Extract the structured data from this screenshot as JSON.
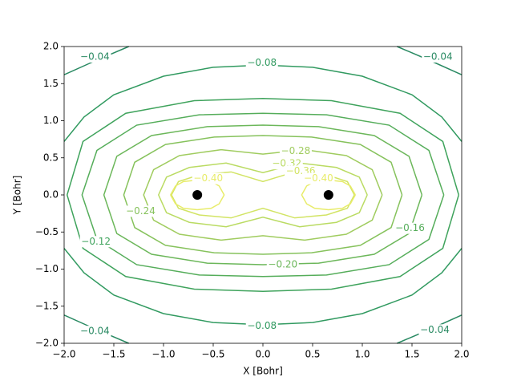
{
  "chart_data": {
    "type": "contour",
    "x_label": "X [Bohr]",
    "y_label": "Y [Bohr]",
    "xlim": [
      -2,
      2
    ],
    "ylim": [
      -2,
      2
    ],
    "xticks": [
      {
        "value": -2,
        "label": "−2.0"
      },
      {
        "value": -1.5,
        "label": "−1.5"
      },
      {
        "value": -1,
        "label": "−1.0"
      },
      {
        "value": -0.5,
        "label": "−0.5"
      },
      {
        "value": 0,
        "label": "0.0"
      },
      {
        "value": 0.5,
        "label": "0.5"
      },
      {
        "value": 1,
        "label": "1.0"
      },
      {
        "value": 1.5,
        "label": "1.5"
      },
      {
        "value": 2,
        "label": "2.0"
      }
    ],
    "yticks": [
      {
        "value": -2,
        "label": "−2.0"
      },
      {
        "value": -1.5,
        "label": "−1.5"
      },
      {
        "value": -1,
        "label": "−1.0"
      },
      {
        "value": -0.5,
        "label": "−0.5"
      },
      {
        "value": 0,
        "label": "0.0"
      },
      {
        "value": 0.5,
        "label": "0.5"
      },
      {
        "value": 1,
        "label": "1.0"
      },
      {
        "value": 1.5,
        "label": "1.5"
      },
      {
        "value": 2,
        "label": "2.0"
      }
    ],
    "series": [
      {
        "name": "−0.04",
        "color": "#2a8a63",
        "x": [
          -2,
          -1.7,
          -1.35,
          null,
          1.35,
          1.7,
          2,
          null,
          -2,
          -1.7,
          -1.35,
          null,
          1.35,
          1.7,
          2
        ],
        "y": [
          1.62,
          1.8,
          2,
          null,
          2,
          1.8,
          1.62,
          null,
          -1.62,
          -1.8,
          -2,
          null,
          -2,
          -1.8,
          -1.62
        ],
        "labels": [
          {
            "x": -1.69,
            "y": 1.86
          },
          {
            "x": 1.76,
            "y": 1.86
          },
          {
            "x": -1.69,
            "y": -1.84
          },
          {
            "x": 1.73,
            "y": -1.82
          }
        ]
      },
      {
        "name": "−0.08",
        "color": "#319a60",
        "x": [
          -2,
          -1.8,
          -1.5,
          -1,
          -0.5,
          0,
          0.5,
          1,
          1.5,
          1.8,
          2,
          null,
          -2,
          -1.8,
          -1.5,
          -1,
          -0.5,
          0,
          0.5,
          1,
          1.5,
          1.8,
          2
        ],
        "y": [
          0.72,
          1.05,
          1.35,
          1.6,
          1.72,
          1.75,
          1.72,
          1.6,
          1.35,
          1.05,
          0.72,
          null,
          -0.72,
          -1.05,
          -1.35,
          -1.6,
          -1.72,
          -1.75,
          -1.72,
          -1.6,
          -1.35,
          -1.05,
          -0.72
        ],
        "labels": [
          {
            "x": -0.01,
            "y": 1.78
          },
          {
            "x": -0.01,
            "y": -1.77
          }
        ]
      },
      {
        "name": "−0.12",
        "color": "#3fa35c",
        "x": [
          1.97,
          1.81,
          1.38,
          0.69,
          0,
          -0.69,
          -1.38,
          -1.81,
          -1.97,
          -1.81,
          -1.38,
          -0.69,
          0,
          0.69,
          1.38,
          1.81,
          1.97
        ],
        "y": [
          0,
          0.72,
          1.1,
          1.27,
          1.3,
          1.27,
          1.1,
          0.72,
          0,
          -0.72,
          -1.1,
          -1.27,
          -1.3,
          -1.27,
          -1.1,
          -0.72,
          0
        ],
        "labels": [
          {
            "x": -1.68,
            "y": -0.63
          }
        ]
      },
      {
        "name": "−0.16",
        "color": "#55ad5a",
        "x": [
          1.82,
          1.67,
          1.27,
          0.64,
          0,
          -0.64,
          -1.27,
          -1.67,
          -1.82,
          -1.67,
          -1.27,
          -0.64,
          0,
          0.64,
          1.27,
          1.67,
          1.82
        ],
        "y": [
          0,
          0.6,
          0.94,
          1.08,
          1.1,
          1.08,
          0.94,
          0.6,
          0,
          -0.6,
          -0.94,
          -1.08,
          -1.1,
          -1.08,
          -0.94,
          -0.6,
          0
        ],
        "labels": [
          {
            "x": 1.48,
            "y": -0.45
          }
        ]
      },
      {
        "name": "−0.20",
        "color": "#6cb75a",
        "x": [
          1.6,
          1.47,
          1.12,
          0.56,
          0,
          -0.56,
          -1.12,
          -1.47,
          -1.6,
          -1.47,
          -1.12,
          -0.56,
          0,
          0.56,
          1.12,
          1.47,
          1.6
        ],
        "y": [
          0,
          0.52,
          0.8,
          0.92,
          0.94,
          0.92,
          0.8,
          0.52,
          0,
          -0.52,
          -0.8,
          -0.92,
          -0.94,
          -0.92,
          -0.8,
          -0.52,
          0
        ],
        "labels": [
          {
            "x": 0.2,
            "y": -0.94
          }
        ]
      },
      {
        "name": "−0.24",
        "color": "#86c25c",
        "x": [
          1.4,
          1.29,
          0.98,
          0.49,
          0,
          -0.49,
          -0.98,
          -1.29,
          -1.4,
          -1.29,
          -0.98,
          -0.49,
          0,
          0.49,
          0.98,
          1.29,
          1.4
        ],
        "y": [
          0,
          0.44,
          0.68,
          0.78,
          0.8,
          0.78,
          0.68,
          0.44,
          0,
          -0.44,
          -0.68,
          -0.78,
          -0.8,
          -0.78,
          -0.68,
          -0.44,
          0
        ],
        "labels": [
          {
            "x": -1.23,
            "y": -0.22
          }
        ]
      },
      {
        "name": "−0.28",
        "color": "#a0cc5f",
        "x": [
          1.2,
          1.1,
          0.84,
          0.42,
          0,
          -0.42,
          -0.84,
          -1.1,
          -1.2,
          -1.1,
          -0.84,
          -0.42,
          0,
          0.42,
          0.84,
          1.1,
          1.2
        ],
        "y": [
          0,
          0.34,
          0.53,
          0.61,
          0.55,
          0.61,
          0.53,
          0.34,
          0,
          -0.34,
          -0.53,
          -0.61,
          -0.55,
          -0.61,
          -0.53,
          -0.34,
          0
        ],
        "labels": [
          {
            "x": 0.33,
            "y": 0.59
          }
        ]
      },
      {
        "name": "−0.32",
        "color": "#badb62",
        "x": [
          1.05,
          0.97,
          0.74,
          0.37,
          0,
          -0.37,
          -0.74,
          -0.97,
          -1.05,
          -0.97,
          -0.74,
          -0.37,
          0,
          0.37,
          0.74,
          0.97,
          1.05
        ],
        "y": [
          0,
          0.24,
          0.37,
          0.43,
          0.3,
          0.43,
          0.37,
          0.24,
          0,
          -0.24,
          -0.37,
          -0.43,
          -0.3,
          -0.43,
          -0.37,
          -0.24,
          0
        ],
        "labels": [
          {
            "x": 0.24,
            "y": 0.42
          }
        ]
      },
      {
        "name": "−0.36",
        "color": "#d2e464",
        "x": [
          0.92,
          0.85,
          0.64,
          0.32,
          0,
          -0.32,
          -0.64,
          -0.85,
          -0.92,
          -0.85,
          -0.64,
          -0.32,
          0,
          0.32,
          0.64,
          0.85,
          0.92
        ],
        "y": [
          0,
          0.18,
          0.27,
          0.31,
          0.18,
          0.31,
          0.27,
          0.18,
          0,
          -0.18,
          -0.27,
          -0.31,
          -0.18,
          -0.31,
          -0.27,
          -0.18,
          0
        ],
        "labels": [
          {
            "x": 0.38,
            "y": 0.32
          }
        ]
      },
      {
        "name": "−0.40",
        "color": "#e8ec6a",
        "x": [
          0.93,
          0.88,
          0.8,
          0.66,
          0.52,
          0.44,
          0.39,
          0.44,
          0.52,
          0.66,
          0.8,
          0.88,
          0.93,
          null,
          -0.93,
          -0.88,
          -0.8,
          -0.66,
          -0.52,
          -0.44,
          -0.39,
          -0.44,
          -0.52,
          -0.66,
          -0.8,
          -0.88,
          -0.93
        ],
        "y": [
          0,
          0.12,
          0.18,
          0.2,
          0.18,
          0.12,
          0,
          -0.12,
          -0.18,
          -0.2,
          -0.18,
          -0.12,
          0,
          null,
          0,
          0.12,
          0.18,
          0.2,
          0.18,
          0.12,
          0,
          -0.12,
          -0.18,
          -0.2,
          -0.18,
          -0.12,
          0
        ],
        "labels": [
          {
            "x": -0.55,
            "y": 0.22
          },
          {
            "x": 0.56,
            "y": 0.22
          }
        ]
      }
    ],
    "points": {
      "color": "#000000",
      "x": [
        -0.66,
        0.66
      ],
      "y": [
        0,
        0
      ]
    }
  }
}
